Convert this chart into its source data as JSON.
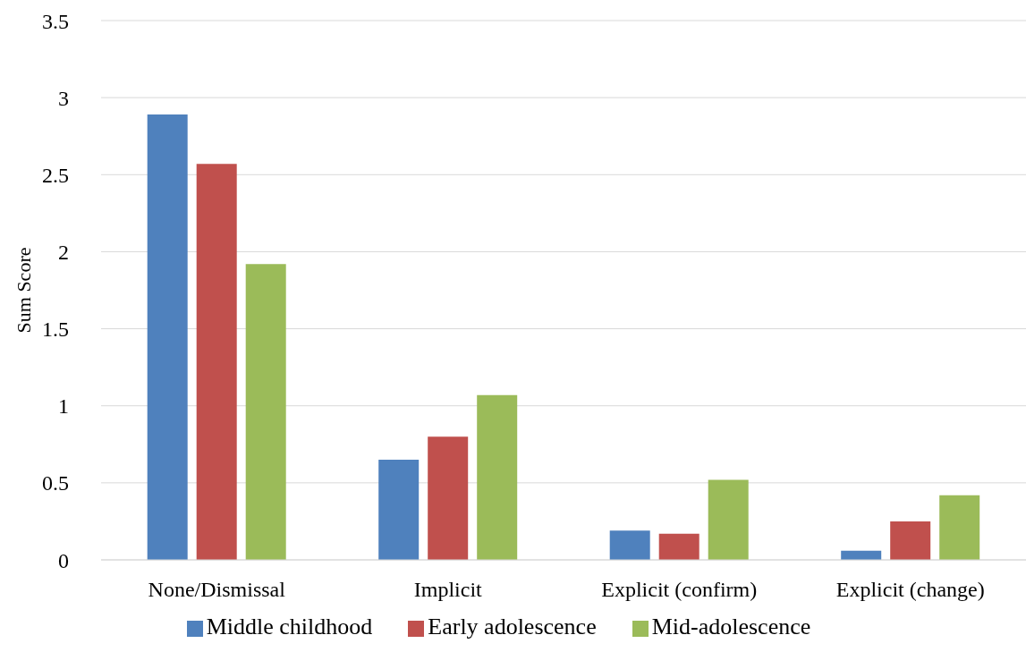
{
  "chart_data": {
    "type": "bar",
    "ylabel": "Sum Score",
    "categories": [
      "None/Dismissal",
      "Implicit",
      "Explicit (confirm)",
      "Explicit (change)"
    ],
    "series": [
      {
        "name": "Middle childhood",
        "color": "#4f81bd",
        "values": [
          2.89,
          0.65,
          0.19,
          0.06
        ]
      },
      {
        "name": "Early adolescence",
        "color": "#c0504d",
        "values": [
          2.57,
          0.8,
          0.17,
          0.25
        ]
      },
      {
        "name": "Mid-adolescence",
        "color": "#9bbb59",
        "values": [
          1.92,
          1.07,
          0.52,
          0.42
        ]
      }
    ],
    "ylim": [
      0,
      3.5
    ],
    "yticks": [
      0,
      0.5,
      1,
      1.5,
      2,
      2.5,
      3,
      3.5
    ],
    "grid": "y",
    "legend": "bottom"
  }
}
